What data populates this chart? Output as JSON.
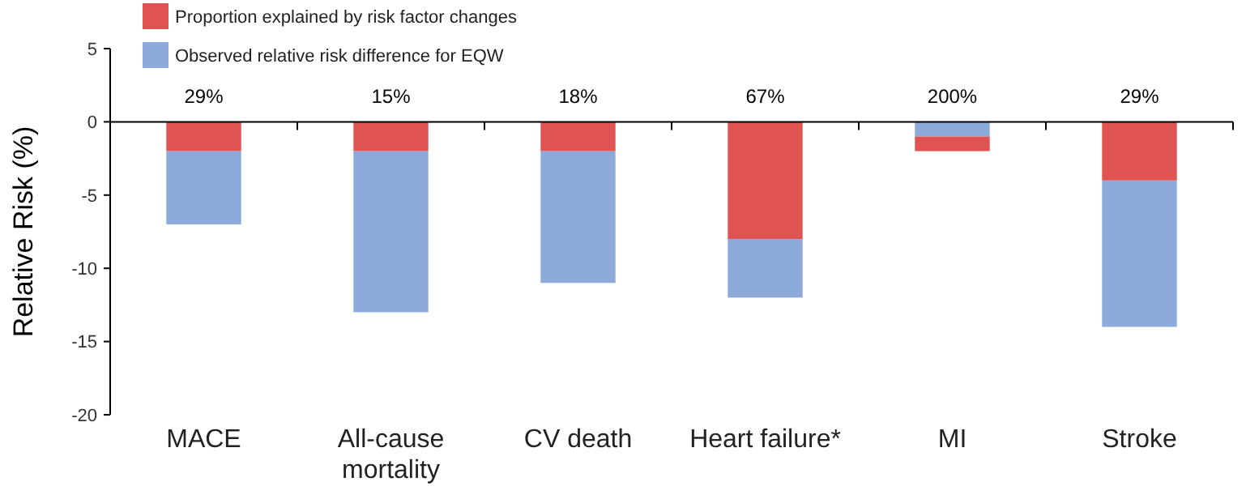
{
  "chart_data": {
    "type": "bar",
    "ylabel": "Relative Risk (%)",
    "categories": [
      "MACE",
      "All-cause mortality",
      "CV death",
      "Heart failure*",
      "MI",
      "Stroke"
    ],
    "series": [
      {
        "name": "Observed relative risk difference for EQW",
        "color": "#8eaadb",
        "base": [
          -2,
          -2,
          -2,
          -8,
          0,
          -4
        ],
        "values": [
          -5,
          -11,
          -9,
          -4,
          -1,
          -10
        ]
      },
      {
        "name": "Proportion explained by risk factor changes",
        "color": "#e05353",
        "base": [
          0,
          0,
          0,
          0,
          -1,
          0
        ],
        "values": [
          -2,
          -2,
          -2,
          -8,
          -1,
          -4
        ]
      }
    ],
    "ylim": [
      -20,
      5
    ],
    "yticks": [
      -20,
      -15,
      -10,
      -5,
      0,
      5
    ],
    "legend": "top left",
    "annotations": [
      "29%",
      "15%",
      "18%",
      "67%",
      "200%",
      "29%"
    ]
  }
}
